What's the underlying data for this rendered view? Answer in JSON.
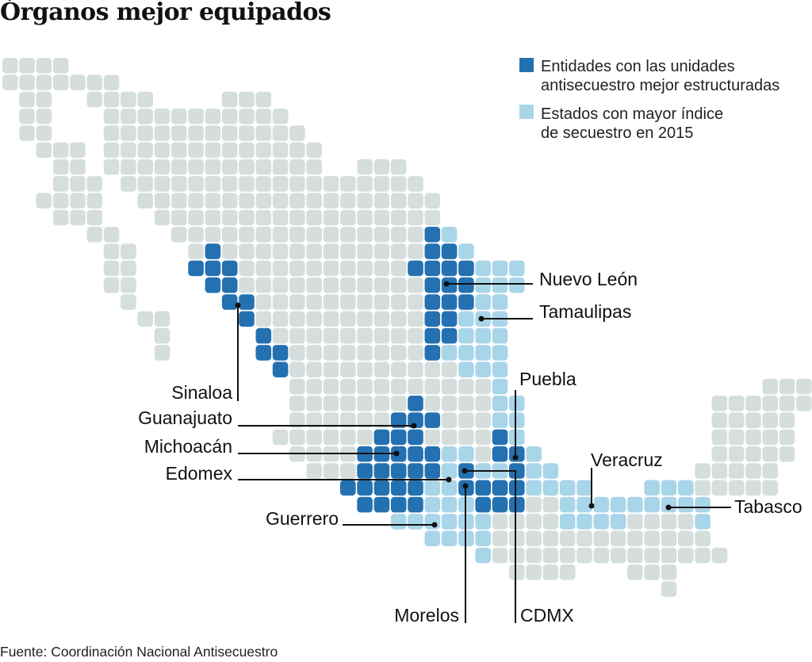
{
  "title": "Órganos mejor equipados",
  "colors": {
    "base": "#d5dedd",
    "best_units": "#2471b1",
    "high_kidnapping": "#a9d5e9"
  },
  "legend": [
    {
      "lines": [
        "Entidades con las unidades",
        "antisecuestro mejor estructuradas"
      ],
      "color": "#2471b1"
    },
    {
      "lines": [
        "Estados con mayor índice",
        "de secuestro en 2015"
      ],
      "color": "#a9d5e9"
    }
  ],
  "categories": {
    "best_units": [
      "Sinaloa",
      "Nuevo León",
      "Guanajuato",
      "Michoacán",
      "Edomex",
      "Puebla",
      "CDMX",
      "Morelos"
    ],
    "high_kidnapping": [
      "Tamaulipas",
      "Guerrero",
      "Veracruz",
      "Tabasco"
    ]
  },
  "labels": {
    "nuevo_leon": "Nuevo León",
    "tamaulipas": "Tamaulipas",
    "sinaloa": "Sinaloa",
    "guanajuato": "Guanajuato",
    "michoacan": "Michoacán",
    "edomex": "Edomex",
    "guerrero": "Guerrero",
    "morelos": "Morelos",
    "cdmx": "CDMX",
    "puebla": "Puebla",
    "veracruz": "Veracruz",
    "tabasco": "Tabasco"
  },
  "source": "Fuente: Coordinación Nacional Antisecuestro"
}
